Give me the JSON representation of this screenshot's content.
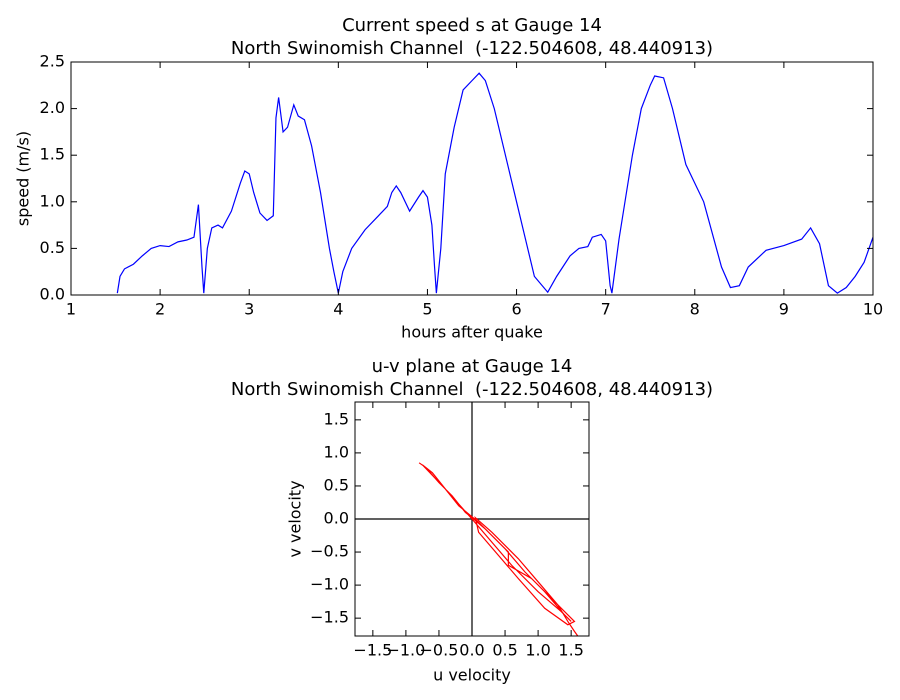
{
  "chart_data": [
    {
      "type": "line",
      "title": "Current speed s at Gauge 14",
      "subtitle": "North Swinomish Channel  (-122.504608, 48.440913)",
      "x_label": "hours after quake",
      "y_label": "speed (m/s)",
      "xlim": [
        1,
        10
      ],
      "ylim": [
        0,
        2.5
      ],
      "xticks": [
        1,
        2,
        3,
        4,
        5,
        6,
        7,
        8,
        9,
        10
      ],
      "yticks": [
        {
          "value": 0,
          "label": "0.0"
        },
        0.5,
        {
          "value": 1,
          "label": "1.0"
        },
        1.5,
        {
          "value": 2,
          "label": "2.0"
        },
        2.5
      ],
      "series": [
        {
          "color": "#0000ff",
          "x": [
            1.52,
            1.55,
            1.6,
            1.7,
            1.8,
            1.9,
            2.0,
            2.1,
            2.2,
            2.3,
            2.38,
            2.43,
            2.47,
            2.49,
            2.53,
            2.58,
            2.65,
            2.7,
            2.8,
            2.9,
            2.95,
            3.0,
            3.05,
            3.12,
            3.2,
            3.27,
            3.3,
            3.33,
            3.38,
            3.43,
            3.5,
            3.55,
            3.62,
            3.7,
            3.8,
            3.9,
            3.95,
            4.0,
            4.05,
            4.15,
            4.3,
            4.45,
            4.55,
            4.6,
            4.65,
            4.7,
            4.8,
            4.9,
            4.95,
            5.0,
            5.05,
            5.08,
            5.1,
            5.15,
            5.2,
            5.3,
            5.4,
            5.5,
            5.58,
            5.65,
            5.75,
            5.9,
            6.0,
            6.1,
            6.2,
            6.35,
            6.45,
            6.6,
            6.7,
            6.8,
            6.85,
            6.95,
            7.0,
            7.05,
            7.07,
            7.15,
            7.3,
            7.4,
            7.5,
            7.55,
            7.65,
            7.75,
            7.9,
            8.1,
            8.3,
            8.4,
            8.5,
            8.6,
            8.8,
            9.0,
            9.2,
            9.3,
            9.4,
            9.5,
            9.6,
            9.7,
            9.8,
            9.9,
            10.0
          ],
          "values": [
            0.02,
            0.2,
            0.28,
            0.33,
            0.42,
            0.5,
            0.53,
            0.52,
            0.57,
            0.59,
            0.62,
            0.97,
            0.3,
            0.02,
            0.5,
            0.72,
            0.75,
            0.72,
            0.9,
            1.2,
            1.33,
            1.3,
            1.1,
            0.88,
            0.8,
            0.85,
            1.9,
            2.12,
            1.75,
            1.8,
            2.04,
            1.92,
            1.88,
            1.6,
            1.1,
            0.5,
            0.25,
            0.02,
            0.25,
            0.5,
            0.7,
            0.85,
            0.95,
            1.1,
            1.17,
            1.1,
            0.9,
            1.05,
            1.12,
            1.05,
            0.75,
            0.3,
            0.02,
            0.5,
            1.3,
            1.8,
            2.2,
            2.3,
            2.38,
            2.3,
            2.0,
            1.4,
            1.0,
            0.6,
            0.2,
            0.03,
            0.2,
            0.42,
            0.5,
            0.52,
            0.62,
            0.65,
            0.58,
            0.1,
            0.02,
            0.6,
            1.5,
            2.0,
            2.25,
            2.35,
            2.33,
            2.0,
            1.4,
            1.0,
            0.3,
            0.08,
            0.1,
            0.3,
            0.48,
            0.53,
            0.6,
            0.72,
            0.55,
            0.1,
            0.02,
            0.08,
            0.2,
            0.35,
            0.62
          ]
        }
      ]
    },
    {
      "type": "line",
      "title": "u-v plane at Gauge 14",
      "subtitle": "North Swinomish Channel  (-122.504608, 48.440913)",
      "x_label": "u velocity",
      "y_label": "v velocity",
      "xlim": [
        -1.77,
        1.77
      ],
      "ylim": [
        -1.77,
        1.77
      ],
      "xticks": [
        {
          "value": -1.5,
          "label": "−1.5"
        },
        {
          "value": -1,
          "label": "−1.0"
        },
        {
          "value": -0.5,
          "label": "−0.5"
        },
        {
          "value": 0,
          "label": "0.0"
        },
        0.5,
        {
          "value": 1,
          "label": "1.0"
        },
        1.5
      ],
      "yticks": [
        {
          "value": -1.5,
          "label": "−1.5"
        },
        {
          "value": -1,
          "label": "−1.0"
        },
        {
          "value": -0.5,
          "label": "−0.5"
        },
        {
          "value": 0,
          "label": "0.0"
        },
        0.5,
        {
          "value": 1,
          "label": "1.0"
        },
        1.5
      ],
      "hlines": [
        0
      ],
      "vlines": [
        0
      ],
      "series": [
        {
          "color": "#ff0000",
          "x": [
            -0.8,
            -0.7,
            -0.5,
            -0.3,
            -0.1,
            0.0,
            0.2,
            0.5,
            0.8,
            1.1,
            1.4,
            1.5,
            1.35,
            1.0,
            0.6,
            0.3,
            0.0,
            -0.4,
            -0.75,
            -0.6,
            -0.2,
            0.1,
            0.55,
            0.55,
            0.9,
            1.3,
            1.55,
            1.45,
            1.1,
            0.7,
            0.4,
            0.1,
            0.05,
            0.3,
            0.7,
            1.0,
            1.3,
            1.45,
            1.55,
            1.6
          ],
          "values": [
            0.85,
            0.78,
            0.55,
            0.35,
            0.1,
            0.02,
            -0.15,
            -0.45,
            -0.8,
            -1.1,
            -1.45,
            -1.55,
            -1.4,
            -1.1,
            -0.7,
            -0.35,
            0.0,
            0.45,
            0.82,
            0.7,
            0.2,
            -0.05,
            -0.5,
            -0.7,
            -0.9,
            -1.3,
            -1.55,
            -1.6,
            -1.35,
            -0.9,
            -0.55,
            -0.2,
            0.02,
            -0.2,
            -0.6,
            -0.95,
            -1.3,
            -1.55,
            -1.7,
            -1.77
          ]
        }
      ]
    }
  ]
}
